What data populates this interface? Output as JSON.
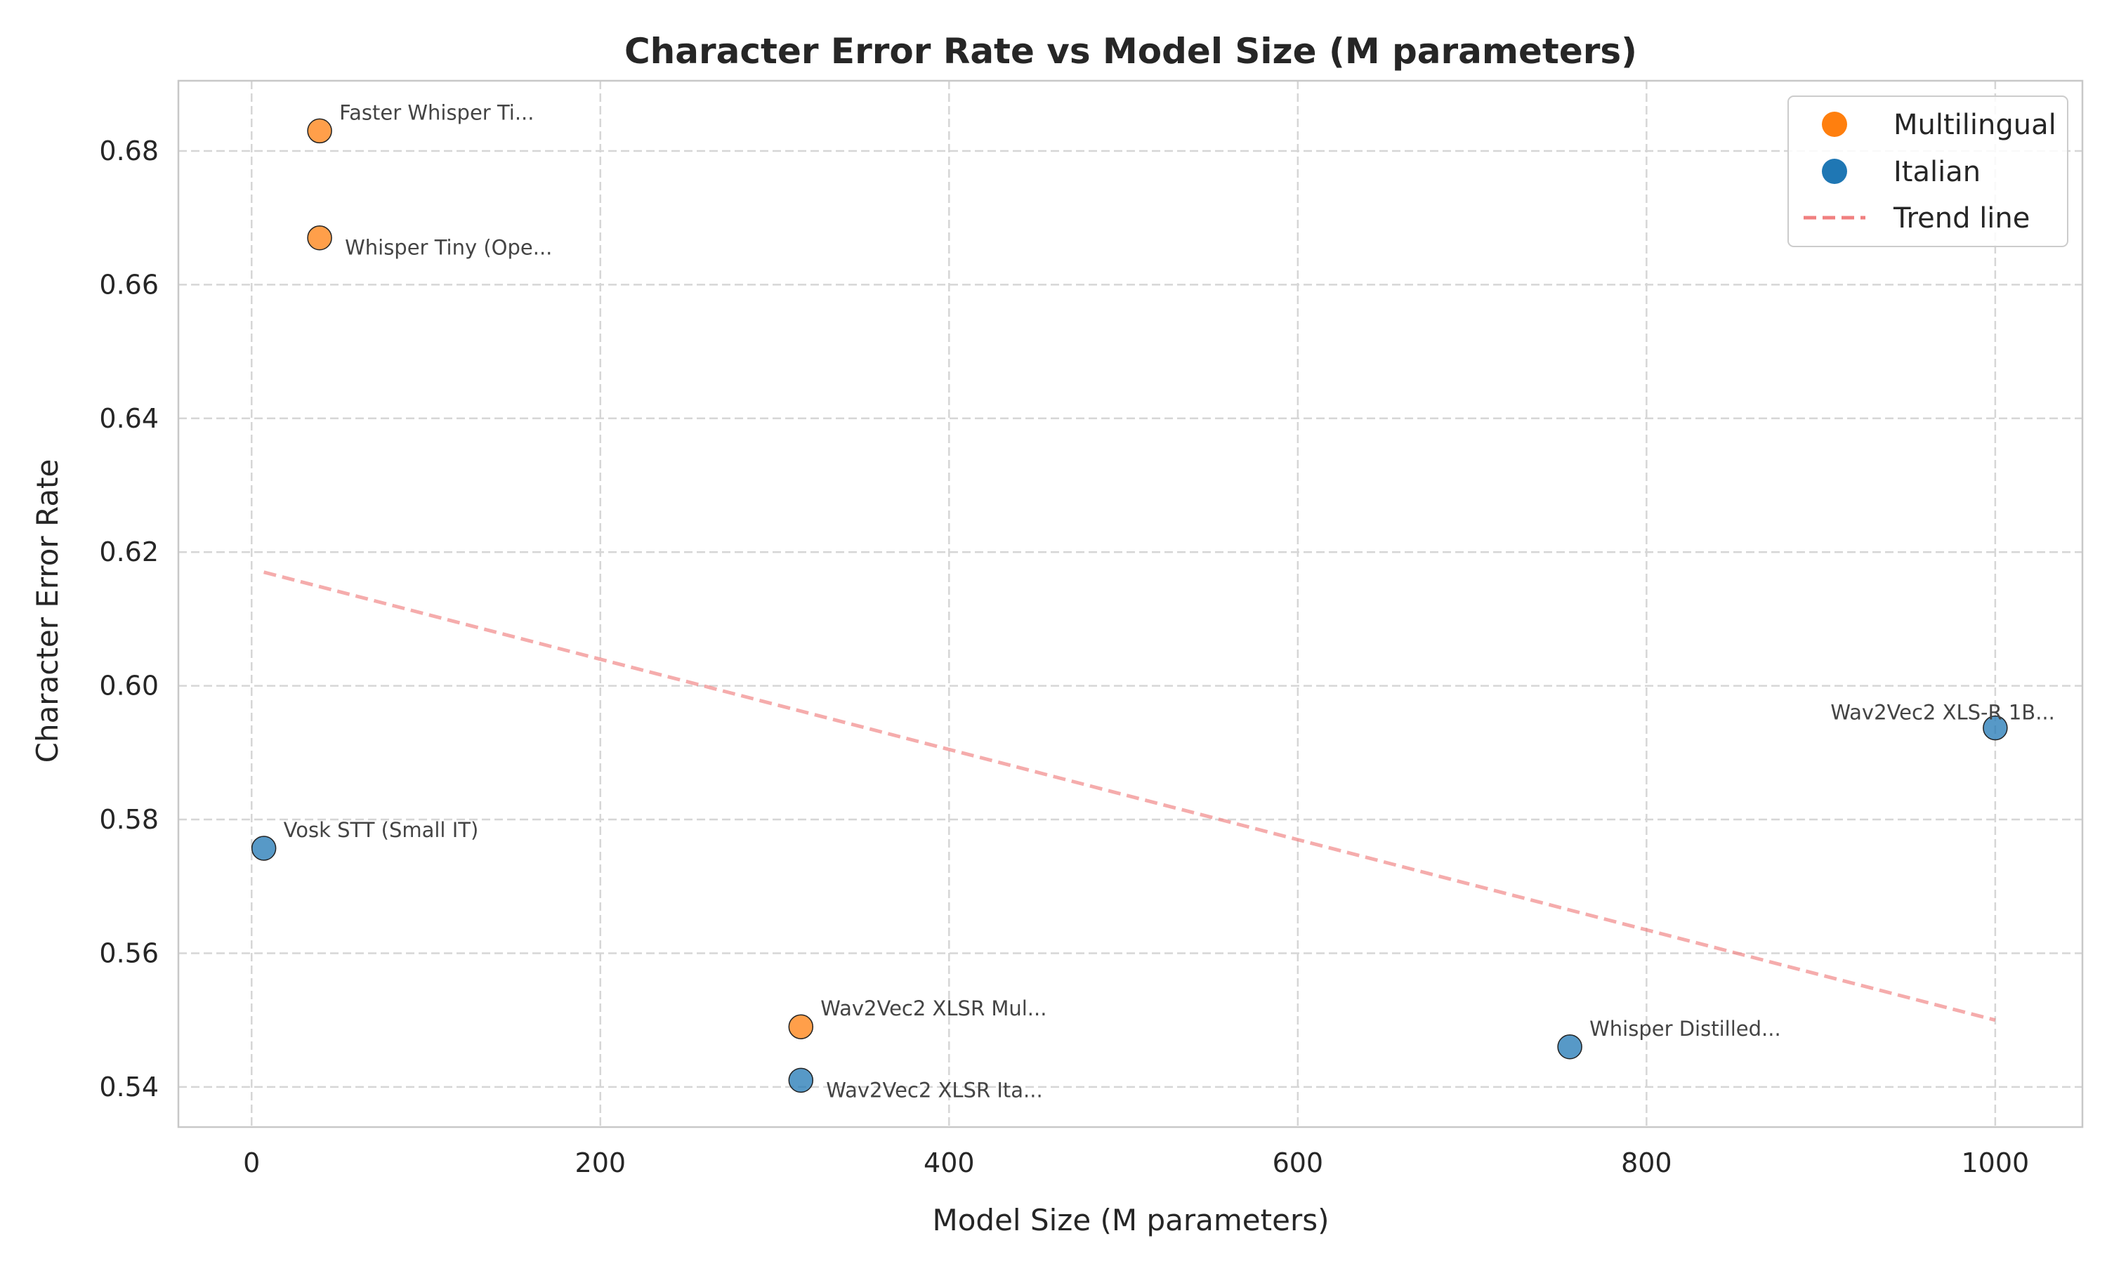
{
  "chart_data": {
    "type": "scatter",
    "title": "Character Error Rate vs Model Size (M parameters)",
    "xlabel": "Model Size (M parameters)",
    "ylabel": "Character Error Rate",
    "xlim": [
      -42,
      1050
    ],
    "ylim": [
      0.534,
      0.6905
    ],
    "xticks": [
      0,
      200,
      400,
      600,
      800,
      1000
    ],
    "yticks": [
      0.54,
      0.56,
      0.58,
      0.6,
      0.62,
      0.64,
      0.66,
      0.68
    ],
    "grid": true,
    "legend_position": "top-right",
    "colors": {
      "Multilingual": "#ff7f0e",
      "Italian": "#1f77b4",
      "trend": "#f08080"
    },
    "series": [
      {
        "name": "Multilingual",
        "points": [
          {
            "x": 39,
            "y": 0.683,
            "label": "Faster Whisper Ti..."
          },
          {
            "x": 39,
            "y": 0.667,
            "label": "Whisper Tiny (Ope..."
          },
          {
            "x": 315,
            "y": 0.549,
            "label": "Wav2Vec2 XLSR Mul..."
          }
        ]
      },
      {
        "name": "Italian",
        "points": [
          {
            "x": 7,
            "y": 0.5757,
            "label": "Vosk STT (Small IT)"
          },
          {
            "x": 315,
            "y": 0.541,
            "label": "Wav2Vec2 XLSR Ita..."
          },
          {
            "x": 756,
            "y": 0.546,
            "label": "Whisper Distilled..."
          },
          {
            "x": 1000,
            "y": 0.5937,
            "label": "Wav2Vec2 XLS-R 1B..."
          }
        ]
      }
    ],
    "trend_line": {
      "name": "Trend line",
      "x": [
        7,
        1000
      ],
      "y": [
        0.617,
        0.55
      ]
    }
  }
}
